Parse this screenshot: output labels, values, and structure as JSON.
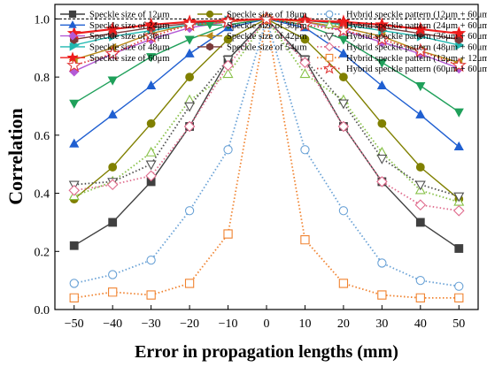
{
  "chart_data": {
    "type": "line",
    "xlabel": "Error in propagation lengths (mm)",
    "ylabel": "Correlation",
    "xlim": [
      -55,
      55
    ],
    "ylim": [
      0,
      1.05
    ],
    "xticks": [
      -50,
      -40,
      -30,
      -20,
      -10,
      0,
      10,
      20,
      30,
      40,
      50
    ],
    "yticks": [
      0.0,
      0.2,
      0.4,
      0.6,
      0.8,
      1.0
    ],
    "xtick_labels": [
      "−50",
      "−40",
      "−30",
      "−20",
      "−10",
      "0",
      "10",
      "20",
      "30",
      "40",
      "50"
    ],
    "ytick_labels": [
      "0.0",
      "0.2",
      "0.4",
      "0.6",
      "0.8",
      "1.0"
    ],
    "reference_line": 1.0,
    "grid": false,
    "legend_position": "top",
    "x": [
      -50,
      -40,
      -30,
      -20,
      -10,
      0,
      10,
      20,
      30,
      40,
      50
    ],
    "series": [
      {
        "name": "Speckle size of 12μm",
        "color": "#404040",
        "marker": "square",
        "filled": true,
        "line": "solid",
        "values": [
          0.22,
          0.3,
          0.44,
          0.63,
          0.86,
          1.0,
          0.86,
          0.63,
          0.44,
          0.3,
          0.21
        ]
      },
      {
        "name": "Speckle size of 18μm",
        "color": "#808000",
        "marker": "circle",
        "filled": true,
        "line": "solid",
        "values": [
          0.38,
          0.49,
          0.64,
          0.8,
          0.93,
          1.0,
          0.93,
          0.8,
          0.64,
          0.49,
          0.38
        ]
      },
      {
        "name": "Speckle size of 24μm",
        "color": "#1f5fd1",
        "marker": "triangle-up",
        "filled": true,
        "line": "solid",
        "values": [
          0.57,
          0.67,
          0.77,
          0.88,
          0.97,
          1.0,
          0.97,
          0.88,
          0.77,
          0.67,
          0.56
        ]
      },
      {
        "name": "Speckle size of 30μm",
        "color": "#1fa05a",
        "marker": "triangle-down",
        "filled": true,
        "line": "solid",
        "values": [
          0.71,
          0.79,
          0.87,
          0.93,
          0.98,
          1.0,
          0.98,
          0.93,
          0.85,
          0.77,
          0.68
        ]
      },
      {
        "name": "Speckle size of 36μm",
        "color": "#b45ad6",
        "marker": "diamond",
        "filled": true,
        "line": "solid",
        "values": [
          0.82,
          0.88,
          0.93,
          0.97,
          0.99,
          1.0,
          0.99,
          0.96,
          0.92,
          0.88,
          0.83
        ]
      },
      {
        "name": "Speckle size of 42μm",
        "color": "#b88a1a",
        "marker": "triangle-left",
        "filled": true,
        "line": "solid",
        "values": [
          0.86,
          0.9,
          0.95,
          0.98,
          0.99,
          1.0,
          0.99,
          0.97,
          0.94,
          0.89,
          0.85
        ]
      },
      {
        "name": "Speckle size of 48μm",
        "color": "#20b8b0",
        "marker": "triangle-right",
        "filled": true,
        "line": "solid",
        "values": [
          0.91,
          0.94,
          0.96,
          0.98,
          0.995,
          1.0,
          0.995,
          0.98,
          0.96,
          0.94,
          0.91
        ]
      },
      {
        "name": "Speckle size of 54μm",
        "color": "#7a3a3a",
        "marker": "hexagon",
        "filled": true,
        "line": "solid",
        "values": [
          0.93,
          0.95,
          0.97,
          0.985,
          0.995,
          1.0,
          0.995,
          0.985,
          0.97,
          0.95,
          0.93
        ]
      },
      {
        "name": "Speckle size of 60μm",
        "color": "#ee1c1c",
        "marker": "star",
        "filled": true,
        "line": "solid",
        "values": [
          0.95,
          0.965,
          0.98,
          0.99,
          0.995,
          1.0,
          0.995,
          0.99,
          0.98,
          0.965,
          0.95
        ]
      },
      {
        "name": "Hybrid speckle pattern (12μm + 60μm)",
        "color": "#6aa2d6",
        "marker": "circle",
        "filled": false,
        "line": "dotted",
        "values": [
          0.09,
          0.12,
          0.17,
          0.34,
          0.55,
          1.0,
          0.55,
          0.34,
          0.16,
          0.1,
          0.08
        ]
      },
      {
        "name": "Hybrid speckle pattern (24μm + 60μm)",
        "color": "#88c148",
        "marker": "triangle-up",
        "filled": false,
        "line": "dotted",
        "values": [
          0.39,
          0.44,
          0.54,
          0.72,
          0.81,
          1.0,
          0.81,
          0.72,
          0.54,
          0.41,
          0.37
        ]
      },
      {
        "name": "Hybrid speckle pattern (36μm + 60μm)",
        "color": "#505050",
        "marker": "triangle-down",
        "filled": false,
        "line": "dotted",
        "values": [
          0.43,
          0.44,
          0.5,
          0.7,
          0.86,
          1.0,
          0.86,
          0.71,
          0.52,
          0.43,
          0.39
        ]
      },
      {
        "name": "Hybrid speckle pattern (48μm + 60μm)",
        "color": "#e06d8e",
        "marker": "diamond",
        "filled": false,
        "line": "dotted",
        "values": [
          0.41,
          0.43,
          0.46,
          0.63,
          0.84,
          1.0,
          0.85,
          0.63,
          0.44,
          0.36,
          0.34
        ]
      },
      {
        "name": "Hybrid speckle pattern (12μm + 12μm)",
        "color": "#f08330",
        "marker": "square",
        "filled": false,
        "line": "dotted",
        "values": [
          0.04,
          0.06,
          0.05,
          0.09,
          0.26,
          1.0,
          0.24,
          0.09,
          0.05,
          0.04,
          0.04
        ]
      },
      {
        "name": "Hybrid speckle pattern (60μm + 60μm)",
        "color": "#e03a3a",
        "marker": "star",
        "filled": false,
        "line": "dotted",
        "values": [
          0.84,
          0.88,
          0.94,
          0.98,
          0.99,
          1.0,
          0.98,
          0.96,
          0.93,
          0.89,
          0.84
        ]
      }
    ]
  }
}
